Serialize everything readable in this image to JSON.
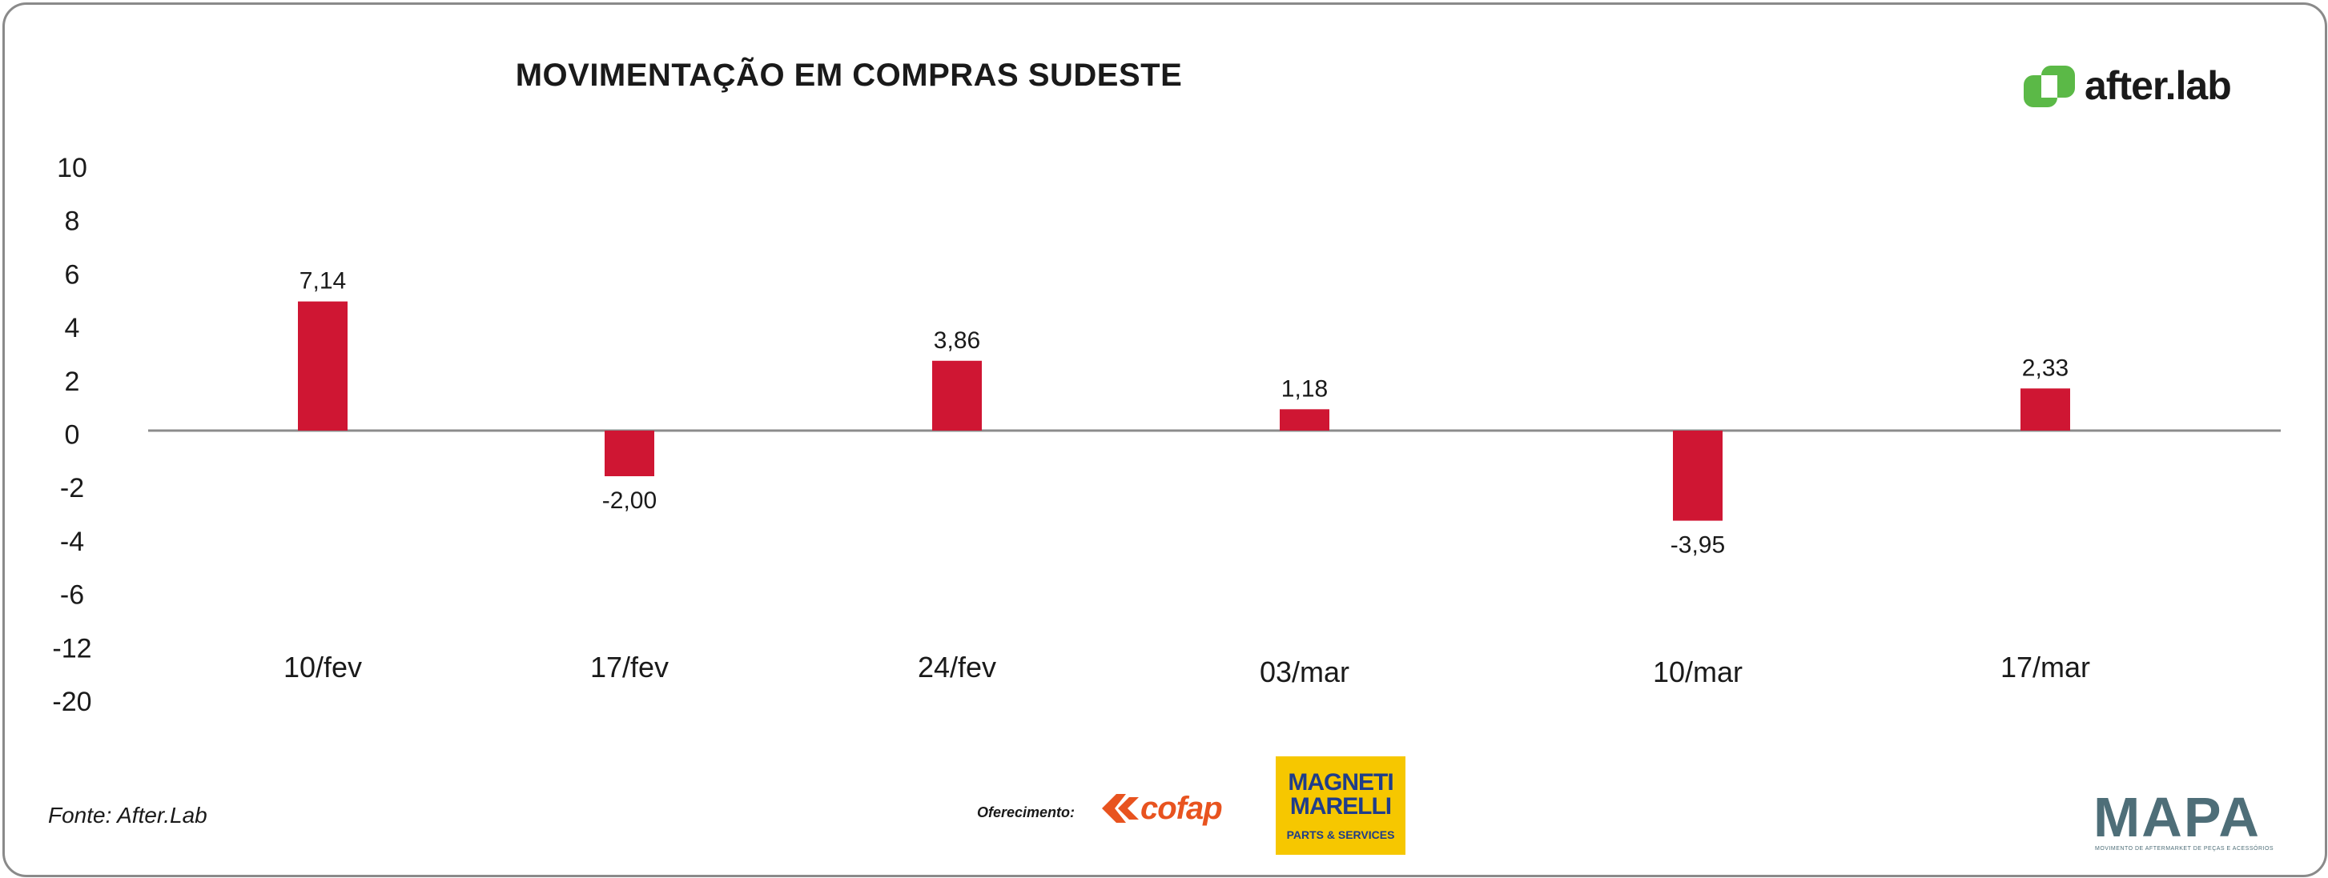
{
  "title": "MOVIMENTAÇÃO EM COMPRAS SUDESTE",
  "brand": {
    "name": "after.lab",
    "color": "#5bb947"
  },
  "source": "Fonte: After.Lab",
  "sponsors": {
    "offer_label": "Oferecimento:",
    "cofap": "cofap",
    "magneti_top": "MAGNETI MARELLI",
    "magneti_bottom": "PARTS & SERVICES",
    "mapa": "MAPA",
    "mapa_sub": "MOVIMENTO DE AFTERMARKET DE PEÇAS E ACESSÓRIOS"
  },
  "colors": {
    "bar": "#cf1633",
    "axis": "#8c8c8c",
    "title": "#1a1a1a"
  },
  "chart_data": {
    "type": "bar",
    "title": "MOVIMENTAÇÃO EM COMPRAS SUDESTE",
    "categories": [
      "10/fev",
      "17/fev",
      "24/fev",
      "03/mar",
      "10/mar",
      "17/mar"
    ],
    "values": [
      7.14,
      -2.0,
      3.86,
      1.18,
      -3.95,
      2.33
    ],
    "value_labels": [
      "7,14",
      "-2,00",
      "3,86",
      "1,18",
      "-3,95",
      "2,33"
    ],
    "y_tick_labels": [
      "10",
      "8",
      "6",
      "4",
      "2",
      "0",
      "-2",
      "-4",
      "-6",
      "-12",
      "-20"
    ],
    "xlabel": "",
    "ylabel": "",
    "grid": false,
    "legend": "none"
  }
}
